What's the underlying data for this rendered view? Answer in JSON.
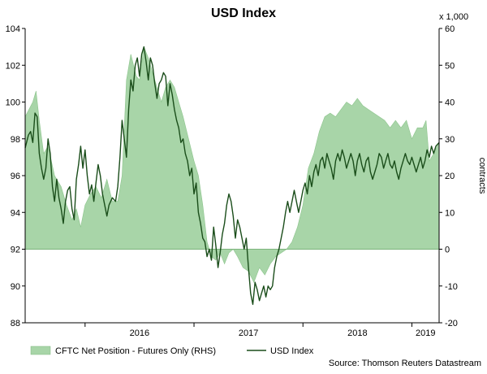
{
  "chart_data": {
    "type": "line+area",
    "title": "USD Index",
    "x_ticks": [
      "2016",
      "2017",
      "2018",
      "2019"
    ],
    "x_range": [
      2015.45,
      2019.25
    ],
    "left_axis": {
      "range": [
        88,
        104
      ],
      "ticks": [
        88,
        90,
        92,
        94,
        96,
        98,
        100,
        102,
        104
      ]
    },
    "right_axis": {
      "range": [
        -20,
        60
      ],
      "ticks": [
        -20,
        -10,
        0,
        10,
        20,
        30,
        40,
        50,
        60
      ],
      "multiplier_label": "x 1,000",
      "label": "contracts"
    },
    "grid": false,
    "legend_position": "bottom",
    "source": "Source: Thomson Reuters Datastream",
    "series": [
      {
        "name": "CFTC Net Position - Futures Only (RHS)",
        "axis": "right",
        "style": "area",
        "color": "#a8d5a8",
        "points": [
          [
            2015.45,
            36
          ],
          [
            2015.52,
            40
          ],
          [
            2015.55,
            43
          ],
          [
            2015.58,
            35
          ],
          [
            2015.62,
            26
          ],
          [
            2015.66,
            28
          ],
          [
            2015.72,
            20
          ],
          [
            2015.78,
            17
          ],
          [
            2015.83,
            12
          ],
          [
            2015.88,
            8
          ],
          [
            2015.92,
            11
          ],
          [
            2015.96,
            6
          ],
          [
            2016.0,
            12
          ],
          [
            2016.05,
            15
          ],
          [
            2016.1,
            17
          ],
          [
            2016.15,
            14
          ],
          [
            2016.2,
            19
          ],
          [
            2016.25,
            13
          ],
          [
            2016.3,
            13
          ],
          [
            2016.34,
            20
          ],
          [
            2016.38,
            46
          ],
          [
            2016.42,
            53
          ],
          [
            2016.47,
            47
          ],
          [
            2016.5,
            46
          ],
          [
            2016.54,
            55
          ],
          [
            2016.58,
            52
          ],
          [
            2016.62,
            48
          ],
          [
            2016.66,
            44
          ],
          [
            2016.7,
            40
          ],
          [
            2016.74,
            44
          ],
          [
            2016.78,
            46
          ],
          [
            2016.82,
            44
          ],
          [
            2016.86,
            40
          ],
          [
            2016.9,
            36
          ],
          [
            2016.95,
            30
          ],
          [
            2017.0,
            24
          ],
          [
            2017.04,
            20
          ],
          [
            2017.08,
            12
          ],
          [
            2017.12,
            2
          ],
          [
            2017.16,
            -2
          ],
          [
            2017.2,
            -3
          ],
          [
            2017.24,
            -1
          ],
          [
            2017.28,
            -4
          ],
          [
            2017.32,
            -1
          ],
          [
            2017.36,
            0
          ],
          [
            2017.4,
            -2
          ],
          [
            2017.45,
            -5
          ],
          [
            2017.5,
            -6
          ],
          [
            2017.55,
            -9
          ],
          [
            2017.6,
            -5
          ],
          [
            2017.65,
            -7
          ],
          [
            2017.7,
            -4
          ],
          [
            2017.75,
            -2
          ],
          [
            2017.8,
            -1
          ],
          [
            2017.85,
            0
          ],
          [
            2017.9,
            2
          ],
          [
            2017.95,
            6
          ],
          [
            2018.0,
            12
          ],
          [
            2018.05,
            22
          ],
          [
            2018.1,
            26
          ],
          [
            2018.15,
            32
          ],
          [
            2018.2,
            36
          ],
          [
            2018.25,
            37
          ],
          [
            2018.3,
            36
          ],
          [
            2018.35,
            38
          ],
          [
            2018.4,
            40
          ],
          [
            2018.45,
            39
          ],
          [
            2018.5,
            41
          ],
          [
            2018.55,
            39
          ],
          [
            2018.6,
            38
          ],
          [
            2018.65,
            37
          ],
          [
            2018.7,
            36
          ],
          [
            2018.75,
            35
          ],
          [
            2018.8,
            33
          ],
          [
            2018.85,
            35
          ],
          [
            2018.9,
            33
          ],
          [
            2018.95,
            35
          ],
          [
            2019.0,
            30
          ],
          [
            2019.05,
            33
          ],
          [
            2019.1,
            33
          ],
          [
            2019.13,
            35
          ],
          [
            2019.16,
            24
          ],
          [
            2019.2,
            26
          ],
          [
            2019.25,
            29
          ]
        ]
      },
      {
        "name": "USD Index",
        "axis": "left",
        "style": "line",
        "color": "#1a4d1a",
        "points": [
          [
            2015.45,
            97.5
          ],
          [
            2015.48,
            98.2
          ],
          [
            2015.5,
            98.4
          ],
          [
            2015.52,
            97.8
          ],
          [
            2015.54,
            99.4
          ],
          [
            2015.56,
            99.2
          ],
          [
            2015.58,
            97.2
          ],
          [
            2015.6,
            96.4
          ],
          [
            2015.62,
            95.8
          ],
          [
            2015.64,
            96.4
          ],
          [
            2015.66,
            98.0
          ],
          [
            2015.68,
            97.2
          ],
          [
            2015.7,
            95.4
          ],
          [
            2015.72,
            94.6
          ],
          [
            2015.74,
            95.8
          ],
          [
            2015.76,
            94.8
          ],
          [
            2015.78,
            94.2
          ],
          [
            2015.8,
            93.4
          ],
          [
            2015.82,
            94.6
          ],
          [
            2015.84,
            95.2
          ],
          [
            2015.86,
            95.4
          ],
          [
            2015.88,
            94.2
          ],
          [
            2015.9,
            93.6
          ],
          [
            2015.92,
            95.8
          ],
          [
            2015.94,
            96.6
          ],
          [
            2015.96,
            97.6
          ],
          [
            2015.98,
            96.4
          ],
          [
            2016.0,
            97.4
          ],
          [
            2016.02,
            96.0
          ],
          [
            2016.04,
            95.0
          ],
          [
            2016.06,
            95.5
          ],
          [
            2016.08,
            94.6
          ],
          [
            2016.1,
            95.6
          ],
          [
            2016.12,
            96.6
          ],
          [
            2016.14,
            96.0
          ],
          [
            2016.16,
            95.0
          ],
          [
            2016.18,
            94.4
          ],
          [
            2016.2,
            93.8
          ],
          [
            2016.22,
            94.4
          ],
          [
            2016.25,
            94.8
          ],
          [
            2016.28,
            94.6
          ],
          [
            2016.3,
            95.4
          ],
          [
            2016.32,
            97.0
          ],
          [
            2016.34,
            99.0
          ],
          [
            2016.36,
            98.0
          ],
          [
            2016.38,
            97.0
          ],
          [
            2016.4,
            99.6
          ],
          [
            2016.42,
            101.2
          ],
          [
            2016.44,
            100.6
          ],
          [
            2016.46,
            102.0
          ],
          [
            2016.48,
            102.4
          ],
          [
            2016.5,
            101.4
          ],
          [
            2016.52,
            102.6
          ],
          [
            2016.54,
            103.0
          ],
          [
            2016.56,
            102.2
          ],
          [
            2016.58,
            101.2
          ],
          [
            2016.6,
            102.4
          ],
          [
            2016.62,
            102.0
          ],
          [
            2016.64,
            101.0
          ],
          [
            2016.66,
            100.2
          ],
          [
            2016.68,
            101.0
          ],
          [
            2016.7,
            101.2
          ],
          [
            2016.72,
            101.6
          ],
          [
            2016.74,
            101.4
          ],
          [
            2016.76,
            99.8
          ],
          [
            2016.78,
            101.0
          ],
          [
            2016.8,
            100.4
          ],
          [
            2016.82,
            99.6
          ],
          [
            2016.84,
            99.0
          ],
          [
            2016.86,
            98.6
          ],
          [
            2016.88,
            97.8
          ],
          [
            2016.9,
            98.0
          ],
          [
            2016.92,
            97.2
          ],
          [
            2016.94,
            96.8
          ],
          [
            2016.96,
            96.0
          ],
          [
            2016.98,
            96.4
          ],
          [
            2017.0,
            95.0
          ],
          [
            2017.02,
            95.6
          ],
          [
            2017.04,
            94.0
          ],
          [
            2017.06,
            93.4
          ],
          [
            2017.08,
            92.6
          ],
          [
            2017.1,
            92.4
          ],
          [
            2017.12,
            91.6
          ],
          [
            2017.14,
            92.0
          ],
          [
            2017.16,
            91.4
          ],
          [
            2017.18,
            93.2
          ],
          [
            2017.2,
            92.2
          ],
          [
            2017.22,
            91.0
          ],
          [
            2017.24,
            91.8
          ],
          [
            2017.26,
            92.8
          ],
          [
            2017.28,
            93.4
          ],
          [
            2017.3,
            94.4
          ],
          [
            2017.32,
            95.0
          ],
          [
            2017.34,
            94.6
          ],
          [
            2017.36,
            93.8
          ],
          [
            2017.38,
            92.6
          ],
          [
            2017.4,
            93.6
          ],
          [
            2017.42,
            93.2
          ],
          [
            2017.44,
            92.6
          ],
          [
            2017.46,
            92.0
          ],
          [
            2017.48,
            92.6
          ],
          [
            2017.5,
            91.0
          ],
          [
            2017.52,
            89.6
          ],
          [
            2017.54,
            89.0
          ],
          [
            2017.56,
            90.2
          ],
          [
            2017.58,
            89.8
          ],
          [
            2017.6,
            89.2
          ],
          [
            2017.62,
            89.6
          ],
          [
            2017.64,
            90.0
          ],
          [
            2017.66,
            89.4
          ],
          [
            2017.68,
            90.0
          ],
          [
            2017.7,
            89.8
          ],
          [
            2017.72,
            90.0
          ],
          [
            2017.74,
            91.0
          ],
          [
            2017.76,
            91.6
          ],
          [
            2017.78,
            92.0
          ],
          [
            2017.8,
            92.6
          ],
          [
            2017.82,
            93.2
          ],
          [
            2017.84,
            94.0
          ],
          [
            2017.86,
            94.6
          ],
          [
            2017.88,
            94.0
          ],
          [
            2017.9,
            94.6
          ],
          [
            2017.92,
            95.2
          ],
          [
            2017.94,
            94.6
          ],
          [
            2017.96,
            94.0
          ],
          [
            2017.98,
            94.6
          ],
          [
            2018.0,
            95.2
          ],
          [
            2018.02,
            95.6
          ],
          [
            2018.04,
            95.0
          ],
          [
            2018.06,
            96.0
          ],
          [
            2018.08,
            95.4
          ],
          [
            2018.1,
            96.2
          ],
          [
            2018.12,
            96.6
          ],
          [
            2018.14,
            96.0
          ],
          [
            2018.16,
            96.8
          ],
          [
            2018.18,
            97.0
          ],
          [
            2018.2,
            96.4
          ],
          [
            2018.22,
            97.2
          ],
          [
            2018.24,
            96.8
          ],
          [
            2018.26,
            96.4
          ],
          [
            2018.28,
            95.8
          ],
          [
            2018.3,
            96.8
          ],
          [
            2018.32,
            97.2
          ],
          [
            2018.34,
            96.8
          ],
          [
            2018.36,
            97.4
          ],
          [
            2018.38,
            97.0
          ],
          [
            2018.4,
            96.4
          ],
          [
            2018.42,
            96.8
          ],
          [
            2018.44,
            97.2
          ],
          [
            2018.46,
            96.8
          ],
          [
            2018.48,
            96.0
          ],
          [
            2018.5,
            96.8
          ],
          [
            2018.52,
            97.2
          ],
          [
            2018.54,
            96.6
          ],
          [
            2018.56,
            96.2
          ],
          [
            2018.58,
            96.8
          ],
          [
            2018.6,
            97.0
          ],
          [
            2018.62,
            96.2
          ],
          [
            2018.64,
            95.8
          ],
          [
            2018.66,
            96.2
          ],
          [
            2018.68,
            96.6
          ],
          [
            2018.7,
            97.2
          ],
          [
            2018.72,
            97.0
          ],
          [
            2018.74,
            96.4
          ],
          [
            2018.76,
            96.8
          ],
          [
            2018.78,
            97.2
          ],
          [
            2018.8,
            96.6
          ],
          [
            2018.82,
            96.4
          ],
          [
            2018.84,
            96.8
          ],
          [
            2018.86,
            96.2
          ],
          [
            2018.88,
            95.8
          ],
          [
            2018.9,
            96.4
          ],
          [
            2018.92,
            96.8
          ],
          [
            2018.94,
            97.2
          ],
          [
            2018.96,
            96.8
          ],
          [
            2018.98,
            96.6
          ],
          [
            2019.0,
            97.0
          ],
          [
            2019.02,
            96.6
          ],
          [
            2019.04,
            96.2
          ],
          [
            2019.06,
            96.6
          ],
          [
            2019.08,
            97.0
          ],
          [
            2019.1,
            96.4
          ],
          [
            2019.12,
            96.8
          ],
          [
            2019.14,
            97.4
          ],
          [
            2019.16,
            97.0
          ],
          [
            2019.18,
            97.6
          ],
          [
            2019.2,
            97.2
          ],
          [
            2019.22,
            97.6
          ],
          [
            2019.25,
            97.8
          ]
        ]
      }
    ]
  }
}
